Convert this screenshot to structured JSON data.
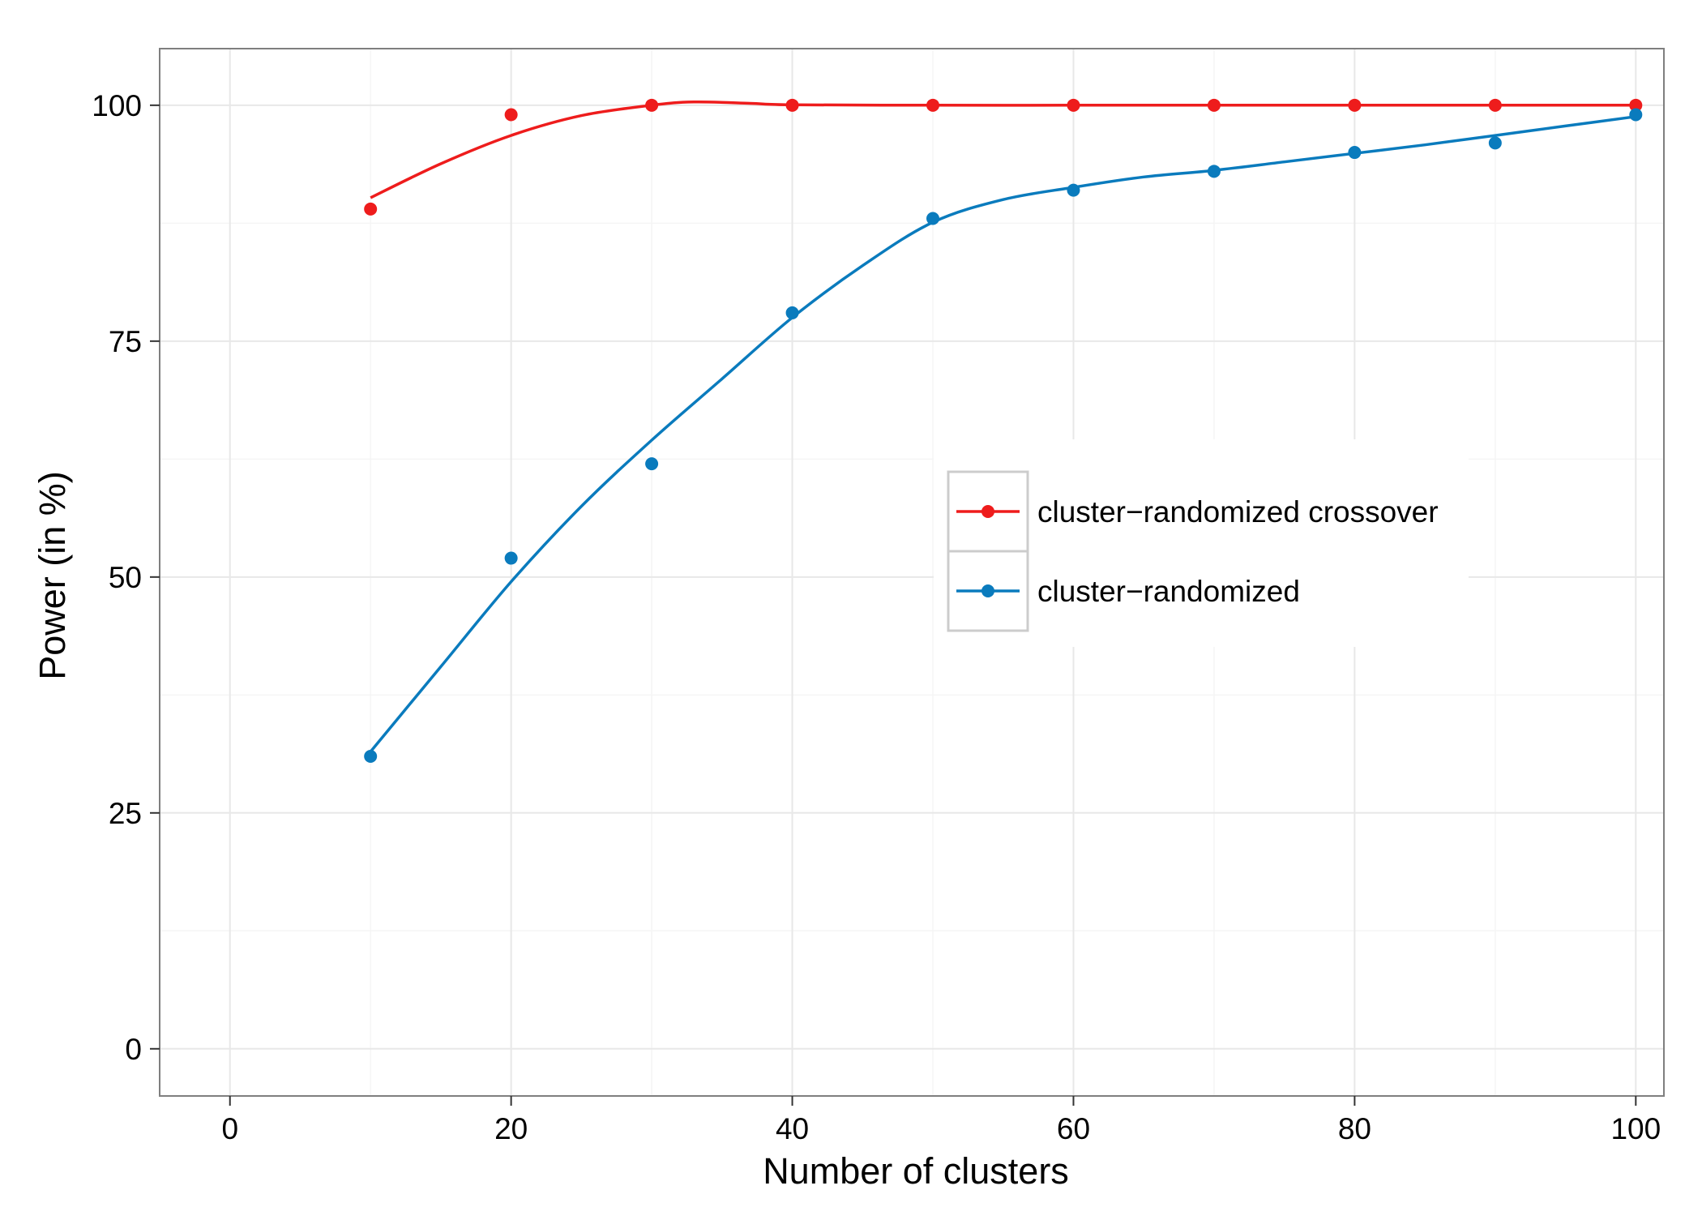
{
  "chart_data": {
    "type": "line",
    "title": "",
    "xlabel": "Number of clusters",
    "ylabel": "Power (in %)",
    "xlim": [
      -5,
      102
    ],
    "ylim": [
      -5,
      106
    ],
    "x_ticks": [
      0,
      20,
      40,
      60,
      80,
      100
    ],
    "y_ticks": [
      0,
      25,
      50,
      75,
      100
    ],
    "x_tick_labels": [
      "0",
      "20",
      "40",
      "60",
      "80",
      "100"
    ],
    "y_tick_labels": [
      "0",
      "25",
      "50",
      "75",
      "100"
    ],
    "grid": true,
    "legend_position": "center-right",
    "x": [
      10,
      20,
      30,
      40,
      50,
      60,
      70,
      80,
      90,
      100
    ],
    "series": [
      {
        "name": "cluster−randomized crossover",
        "color": "#ee1c1c",
        "points": [
          89,
          99,
          100,
          100,
          100,
          100,
          100,
          100,
          100,
          100
        ],
        "smooth": [
          [
            10,
            90.2
          ],
          [
            15,
            93.8
          ],
          [
            20,
            96.8
          ],
          [
            25,
            98.9
          ],
          [
            30,
            100.0
          ],
          [
            33,
            100.35
          ],
          [
            37,
            100.2
          ],
          [
            40,
            100.05
          ],
          [
            50,
            100.0
          ],
          [
            60,
            100.0
          ],
          [
            70,
            100.0
          ],
          [
            80,
            100.0
          ],
          [
            90,
            100.0
          ],
          [
            100,
            100.0
          ]
        ]
      },
      {
        "name": "cluster−randomized",
        "color": "#0a7bbd",
        "points": [
          31,
          52,
          62,
          78,
          88,
          91,
          93,
          95,
          96,
          99
        ],
        "smooth": [
          [
            10,
            31.5
          ],
          [
            15,
            40.5
          ],
          [
            20,
            49.5
          ],
          [
            25,
            57.5
          ],
          [
            30,
            64.5
          ],
          [
            35,
            71.0
          ],
          [
            40,
            77.5
          ],
          [
            45,
            83.0
          ],
          [
            50,
            87.6
          ],
          [
            55,
            90.0
          ],
          [
            60,
            91.3
          ],
          [
            65,
            92.4
          ],
          [
            70,
            93.1
          ],
          [
            75,
            94.0
          ],
          [
            80,
            94.9
          ],
          [
            85,
            95.8
          ],
          [
            90,
            96.8
          ],
          [
            95,
            97.8
          ],
          [
            100,
            98.8
          ]
        ]
      }
    ]
  }
}
